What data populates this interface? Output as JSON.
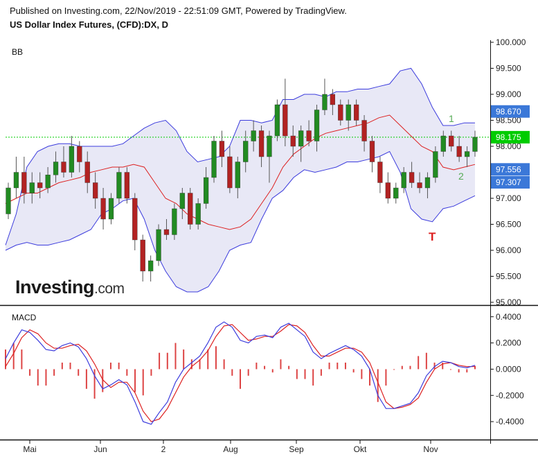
{
  "header": {
    "published": "Published on Investing.com, 22/Nov/2019 - 22:51:09 GMT, Powered by TradingView.",
    "instrument": "US Dollar Index Futures, (CFD):DX, D"
  },
  "logo": {
    "main": "Investing",
    "suffix": ".com"
  },
  "colors": {
    "up": "#228b22",
    "down": "#b22222",
    "band_fill": "#e4e4f4",
    "band_line": "#3b3bdd",
    "basis": "#dd2020",
    "macd": "#3b3bdd",
    "signal": "#dd2020",
    "price_line": "#00cc00"
  },
  "chart_data": [
    {
      "type": "candlestick",
      "panel_title": "BB",
      "yticks": [
        "100.000",
        "99.500",
        "99.000",
        "98.500",
        "98.000",
        "97.500",
        "97.000",
        "96.500",
        "96.000",
        "95.500",
        "95.000"
      ],
      "ylim": [
        95.0,
        100.0
      ],
      "x_labels": [
        "Mai",
        "Jun",
        "2",
        "Aug",
        "Sep",
        "Okt",
        "Nov"
      ],
      "badges": [
        {
          "label": "98.670",
          "value": 98.67,
          "color": "#3b78d8"
        },
        {
          "label": "98.175",
          "value": 98.175,
          "color": "#00cc00"
        },
        {
          "label": "97.556",
          "value": 97.556,
          "color": "#3b78d8"
        },
        {
          "label": "97.307",
          "value": 97.307,
          "color": "#3b78d8"
        }
      ],
      "last_price": 98.175,
      "annotations": [
        {
          "text": "1",
          "color": "#55aa55"
        },
        {
          "text": "2",
          "color": "#55aa55"
        },
        {
          "text": "T",
          "color": "#dd2020"
        }
      ],
      "upper_band": [
        96.1,
        96.7,
        97.6,
        97.9,
        98.0,
        98.05,
        98.05,
        98.0,
        98.0,
        98.0,
        98.0,
        98.05,
        98.2,
        98.35,
        98.45,
        98.5,
        98.3,
        97.9,
        97.7,
        97.75,
        97.8,
        98.0,
        98.5,
        98.5,
        98.45,
        98.5,
        98.9,
        98.9,
        99.0,
        99.0,
        98.95,
        99.05,
        99.05,
        99.1,
        99.1,
        99.15,
        99.2,
        99.45,
        99.5,
        99.2,
        98.75,
        98.4,
        98.4,
        98.45,
        98.45
      ],
      "basis": [
        96.9,
        97.0,
        97.1,
        97.1,
        97.2,
        97.3,
        97.35,
        97.4,
        97.5,
        97.55,
        97.6,
        97.6,
        97.65,
        97.6,
        97.3,
        97.0,
        96.9,
        96.7,
        96.6,
        96.5,
        96.45,
        96.4,
        96.45,
        96.6,
        96.9,
        97.2,
        97.6,
        97.85,
        98.0,
        98.15,
        98.25,
        98.3,
        98.35,
        98.4,
        98.45,
        98.55,
        98.6,
        98.4,
        98.2,
        98.0,
        97.9,
        97.6,
        97.55,
        97.6,
        97.65
      ],
      "lower_band": [
        96.0,
        96.1,
        96.15,
        96.1,
        96.1,
        96.15,
        96.2,
        96.3,
        96.4,
        96.7,
        96.8,
        96.95,
        97.0,
        96.6,
        96.0,
        95.6,
        95.3,
        95.2,
        95.2,
        95.3,
        95.6,
        96.0,
        96.1,
        96.15,
        96.6,
        97.0,
        97.15,
        97.4,
        97.55,
        97.5,
        97.55,
        97.6,
        97.7,
        97.7,
        97.75,
        97.8,
        97.9,
        97.5,
        96.8,
        96.6,
        96.55,
        96.8,
        96.85,
        96.95,
        97.05
      ],
      "candles": [
        {
          "o": 96.7,
          "h": 97.3,
          "l": 96.6,
          "c": 97.2
        },
        {
          "o": 97.2,
          "h": 97.8,
          "l": 97.0,
          "c": 97.5
        },
        {
          "o": 97.5,
          "h": 97.8,
          "l": 96.9,
          "c": 97.1
        },
        {
          "o": 97.1,
          "h": 97.5,
          "l": 96.9,
          "c": 97.3
        },
        {
          "o": 97.3,
          "h": 97.5,
          "l": 97.0,
          "c": 97.2
        },
        {
          "o": 97.2,
          "h": 97.6,
          "l": 97.1,
          "c": 97.45
        },
        {
          "o": 97.45,
          "h": 97.9,
          "l": 97.3,
          "c": 97.7
        },
        {
          "o": 97.7,
          "h": 98.0,
          "l": 97.4,
          "c": 97.5
        },
        {
          "o": 97.5,
          "h": 98.2,
          "l": 97.4,
          "c": 98.0
        },
        {
          "o": 98.0,
          "h": 98.1,
          "l": 97.5,
          "c": 97.7
        },
        {
          "o": 97.7,
          "h": 97.9,
          "l": 97.1,
          "c": 97.3
        },
        {
          "o": 97.3,
          "h": 97.5,
          "l": 96.8,
          "c": 97.0
        },
        {
          "o": 97.0,
          "h": 97.2,
          "l": 96.4,
          "c": 96.6
        },
        {
          "o": 96.6,
          "h": 97.1,
          "l": 96.5,
          "c": 97.0
        },
        {
          "o": 97.0,
          "h": 97.6,
          "l": 96.9,
          "c": 97.5
        },
        {
          "o": 97.5,
          "h": 97.6,
          "l": 96.9,
          "c": 97.0
        },
        {
          "o": 97.0,
          "h": 97.1,
          "l": 96.0,
          "c": 96.2
        },
        {
          "o": 96.2,
          "h": 96.3,
          "l": 95.4,
          "c": 95.6
        },
        {
          "o": 95.6,
          "h": 95.9,
          "l": 95.4,
          "c": 95.8
        },
        {
          "o": 95.8,
          "h": 96.5,
          "l": 95.7,
          "c": 96.4
        },
        {
          "o": 96.4,
          "h": 96.6,
          "l": 96.2,
          "c": 96.3
        },
        {
          "o": 96.3,
          "h": 96.9,
          "l": 96.2,
          "c": 96.8
        },
        {
          "o": 96.8,
          "h": 97.2,
          "l": 96.6,
          "c": 97.1
        },
        {
          "o": 97.1,
          "h": 97.2,
          "l": 96.4,
          "c": 96.5
        },
        {
          "o": 96.5,
          "h": 97.0,
          "l": 96.4,
          "c": 96.9
        },
        {
          "o": 96.9,
          "h": 97.6,
          "l": 96.8,
          "c": 97.4
        },
        {
          "o": 97.4,
          "h": 98.2,
          "l": 97.3,
          "c": 98.1
        },
        {
          "o": 98.1,
          "h": 98.3,
          "l": 97.6,
          "c": 97.8
        },
        {
          "o": 97.8,
          "h": 98.0,
          "l": 97.1,
          "c": 97.2
        },
        {
          "o": 97.2,
          "h": 97.8,
          "l": 97.0,
          "c": 97.7
        },
        {
          "o": 97.7,
          "h": 98.3,
          "l": 97.5,
          "c": 98.1
        },
        {
          "o": 98.1,
          "h": 98.5,
          "l": 97.9,
          "c": 98.3
        },
        {
          "o": 98.3,
          "h": 98.4,
          "l": 97.6,
          "c": 97.8
        },
        {
          "o": 97.8,
          "h": 98.3,
          "l": 97.3,
          "c": 98.2
        },
        {
          "o": 98.2,
          "h": 98.9,
          "l": 98.1,
          "c": 98.8
        },
        {
          "o": 98.8,
          "h": 99.3,
          "l": 98.0,
          "c": 98.2
        },
        {
          "o": 98.2,
          "h": 98.4,
          "l": 97.8,
          "c": 98.0
        },
        {
          "o": 98.0,
          "h": 98.4,
          "l": 97.7,
          "c": 98.3
        },
        {
          "o": 98.3,
          "h": 98.5,
          "l": 98.0,
          "c": 98.1
        },
        {
          "o": 98.1,
          "h": 98.8,
          "l": 97.9,
          "c": 98.7
        },
        {
          "o": 98.7,
          "h": 99.3,
          "l": 98.6,
          "c": 99.0
        },
        {
          "o": 99.0,
          "h": 99.1,
          "l": 98.6,
          "c": 98.8
        },
        {
          "o": 98.8,
          "h": 98.9,
          "l": 98.4,
          "c": 98.5
        },
        {
          "o": 98.5,
          "h": 98.9,
          "l": 98.3,
          "c": 98.8
        },
        {
          "o": 98.8,
          "h": 98.9,
          "l": 98.4,
          "c": 98.5
        },
        {
          "o": 98.5,
          "h": 98.6,
          "l": 97.9,
          "c": 98.1
        },
        {
          "o": 98.1,
          "h": 98.2,
          "l": 97.5,
          "c": 97.7
        },
        {
          "o": 97.7,
          "h": 97.8,
          "l": 97.1,
          "c": 97.3
        },
        {
          "o": 97.3,
          "h": 97.5,
          "l": 96.9,
          "c": 97.0
        },
        {
          "o": 97.0,
          "h": 97.3,
          "l": 96.9,
          "c": 97.2
        },
        {
          "o": 97.2,
          "h": 97.6,
          "l": 97.1,
          "c": 97.5
        },
        {
          "o": 97.5,
          "h": 97.7,
          "l": 97.2,
          "c": 97.3
        },
        {
          "o": 97.3,
          "h": 97.5,
          "l": 97.1,
          "c": 97.2
        },
        {
          "o": 97.2,
          "h": 97.5,
          "l": 97.0,
          "c": 97.4
        },
        {
          "o": 97.4,
          "h": 98.0,
          "l": 97.3,
          "c": 97.9
        },
        {
          "o": 97.9,
          "h": 98.3,
          "l": 97.8,
          "c": 98.2
        },
        {
          "o": 98.2,
          "h": 98.3,
          "l": 97.9,
          "c": 98.0
        },
        {
          "o": 98.0,
          "h": 98.2,
          "l": 97.7,
          "c": 97.8
        },
        {
          "o": 97.8,
          "h": 98.0,
          "l": 97.6,
          "c": 97.9
        },
        {
          "o": 97.9,
          "h": 98.3,
          "l": 97.8,
          "c": 98.175
        }
      ]
    },
    {
      "type": "line",
      "panel_title": "MACD",
      "yticks": [
        "0.4000",
        "0.2000",
        "0.0000",
        "-0.2000",
        "-0.4000"
      ],
      "ylim": [
        -0.5,
        0.42
      ],
      "macd": [
        0.08,
        0.2,
        0.3,
        0.28,
        0.22,
        0.15,
        0.14,
        0.18,
        0.2,
        0.17,
        0.08,
        -0.05,
        -0.15,
        -0.12,
        -0.08,
        -0.12,
        -0.25,
        -0.4,
        -0.42,
        -0.33,
        -0.25,
        -0.1,
        0.0,
        0.05,
        0.1,
        0.2,
        0.32,
        0.36,
        0.32,
        0.22,
        0.2,
        0.25,
        0.26,
        0.24,
        0.32,
        0.35,
        0.3,
        0.25,
        0.13,
        0.08,
        0.12,
        0.15,
        0.18,
        0.15,
        0.1,
        0.0,
        -0.2,
        -0.3,
        -0.3,
        -0.28,
        -0.26,
        -0.18,
        -0.05,
        0.02,
        0.06,
        0.05,
        0.02,
        0.01,
        0.03
      ],
      "signal": [
        0.02,
        0.12,
        0.24,
        0.3,
        0.27,
        0.2,
        0.16,
        0.16,
        0.18,
        0.19,
        0.14,
        0.04,
        -0.08,
        -0.14,
        -0.1,
        -0.1,
        -0.18,
        -0.32,
        -0.4,
        -0.38,
        -0.3,
        -0.18,
        -0.06,
        0.02,
        0.07,
        0.14,
        0.25,
        0.33,
        0.34,
        0.28,
        0.22,
        0.23,
        0.25,
        0.25,
        0.29,
        0.34,
        0.33,
        0.28,
        0.18,
        0.1,
        0.1,
        0.13,
        0.16,
        0.16,
        0.13,
        0.05,
        -0.1,
        -0.25,
        -0.3,
        -0.29,
        -0.27,
        -0.22,
        -0.1,
        0.0,
        0.04,
        0.05,
        0.03,
        0.02,
        0.02
      ]
    }
  ]
}
